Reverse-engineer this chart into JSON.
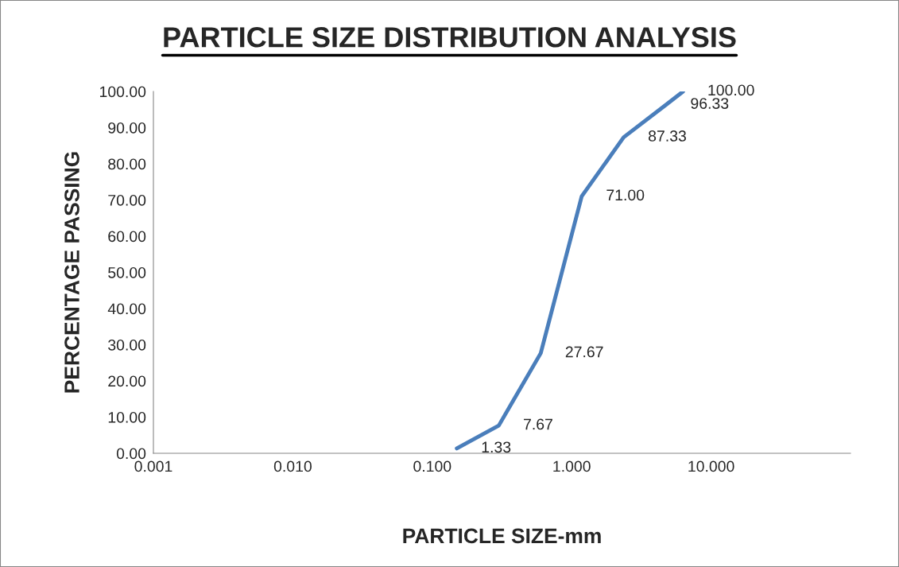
{
  "chart_data": {
    "type": "line",
    "title": "PARTICLE SIZE DISTRIBUTION ANALYSIS",
    "xlabel": "PARTICLE SIZE-mm",
    "ylabel": "PERCENTAGE PASSING",
    "x": [
      0.15,
      0.3,
      0.6,
      1.18,
      2.36,
      4.75,
      6.3
    ],
    "series": [
      {
        "color": "#4a7ebb",
        "values": [
          1.33,
          7.67,
          27.67,
          71.0,
          87.33,
          96.33,
          100.0
        ],
        "value_labels": [
          "1.33",
          "7.67",
          "27.67",
          "71.00",
          "87.33",
          "96.33",
          "100.00"
        ]
      }
    ],
    "log": "x",
    "xlim": [
      0.001,
      100
    ],
    "ylim": [
      0,
      100
    ],
    "xticks": [
      {
        "value": 0.001,
        "label": "0.001"
      },
      {
        "value": 0.01,
        "label": "0.010"
      },
      {
        "value": 0.1,
        "label": "0.100"
      },
      {
        "value": 1,
        "label": "1.000"
      },
      {
        "value": 10,
        "label": "10.000"
      }
    ],
    "yticks": [
      {
        "value": 0,
        "label": "0.00"
      },
      {
        "value": 10,
        "label": "10.00"
      },
      {
        "value": 20,
        "label": "20.00"
      },
      {
        "value": 30,
        "label": "30.00"
      },
      {
        "value": 40,
        "label": "40.00"
      },
      {
        "value": 50,
        "label": "50.00"
      },
      {
        "value": 60,
        "label": "60.00"
      },
      {
        "value": 70,
        "label": "70.00"
      },
      {
        "value": 80,
        "label": "80.00"
      },
      {
        "value": 90,
        "label": "90.00"
      },
      {
        "value": 100,
        "label": "100.00"
      }
    ],
    "grid": false,
    "legend": false,
    "marker": "none",
    "line_style": "solid"
  }
}
